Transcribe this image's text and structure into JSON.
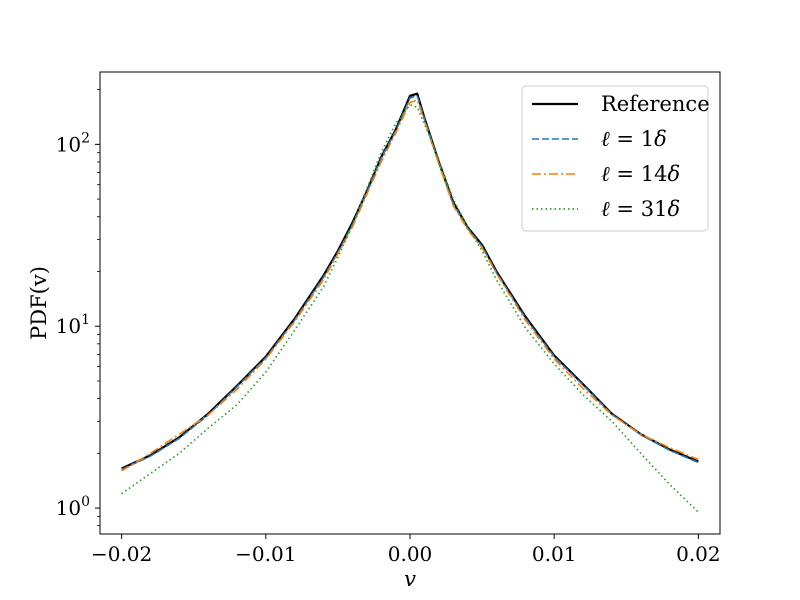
{
  "chart_data": {
    "type": "line",
    "title": "",
    "xlabel": "v",
    "ylabel": "PDF(v)",
    "yscale": "log",
    "xlim": [
      -0.0215,
      0.0215
    ],
    "ylim": [
      0.72,
      250
    ],
    "grid": false,
    "legend_position": "top-right",
    "x_ticks": [
      -0.02,
      -0.01,
      0.0,
      0.01,
      0.02
    ],
    "x_tick_labels": [
      "−0.02",
      "−0.01",
      "0.00",
      "0.01",
      "0.02"
    ],
    "y_ticks": [
      1,
      10,
      100
    ],
    "y_tick_labels": [
      {
        "base": "10",
        "exp": "0"
      },
      {
        "base": "10",
        "exp": "1"
      },
      {
        "base": "10",
        "exp": "2"
      }
    ],
    "series": [
      {
        "name": "Reference",
        "color": "#000000",
        "style": "solid",
        "x": [
          -0.02,
          -0.018,
          -0.016,
          -0.014,
          -0.012,
          -0.01,
          -0.008,
          -0.006,
          -0.005,
          -0.004,
          -0.003,
          -0.002,
          -0.001,
          0.0,
          0.0005,
          0.001,
          0.002,
          0.003,
          0.004,
          0.005,
          0.006,
          0.008,
          0.01,
          0.012,
          0.014,
          0.016,
          0.018,
          0.02
        ],
        "y": [
          1.65,
          1.95,
          2.45,
          3.3,
          4.7,
          6.8,
          11.0,
          19.0,
          26.0,
          37.0,
          55.0,
          85.0,
          120.0,
          185.0,
          190.0,
          140.0,
          80.0,
          48.0,
          35.0,
          28.0,
          20.0,
          11.3,
          6.9,
          4.8,
          3.3,
          2.55,
          2.1,
          1.8
        ]
      },
      {
        "name": "ℓ = 1δ",
        "color": "#1f77b4",
        "style": "dashed",
        "x": [
          -0.02,
          -0.018,
          -0.016,
          -0.014,
          -0.012,
          -0.01,
          -0.008,
          -0.006,
          -0.005,
          -0.004,
          -0.003,
          -0.002,
          -0.001,
          0.0,
          0.0005,
          0.001,
          0.002,
          0.003,
          0.004,
          0.005,
          0.006,
          0.008,
          0.01,
          0.012,
          0.014,
          0.016,
          0.018,
          0.02
        ],
        "y": [
          1.63,
          1.93,
          2.42,
          3.25,
          4.65,
          6.7,
          10.8,
          18.6,
          25.5,
          36.0,
          54.0,
          84.0,
          118.0,
          180.0,
          185.0,
          138.0,
          79.0,
          47.0,
          34.5,
          27.5,
          19.7,
          11.1,
          6.8,
          4.75,
          3.28,
          2.53,
          2.08,
          1.78
        ]
      },
      {
        "name": "ℓ = 14δ",
        "color": "#ff7f0e",
        "style": "dashdot",
        "x": [
          -0.02,
          -0.018,
          -0.016,
          -0.014,
          -0.012,
          -0.01,
          -0.008,
          -0.006,
          -0.005,
          -0.004,
          -0.003,
          -0.002,
          -0.001,
          0.0,
          0.0005,
          0.001,
          0.002,
          0.003,
          0.004,
          0.005,
          0.006,
          0.008,
          0.01,
          0.012,
          0.014,
          0.016,
          0.018,
          0.02
        ],
        "y": [
          1.6,
          2.0,
          2.55,
          3.25,
          4.5,
          6.6,
          10.6,
          18.0,
          25.0,
          35.0,
          53.0,
          80.0,
          115.0,
          170.0,
          175.0,
          135.0,
          78.0,
          46.0,
          34.0,
          27.0,
          19.5,
          10.8,
          6.6,
          4.55,
          3.25,
          2.55,
          2.15,
          1.85
        ]
      },
      {
        "name": "ℓ = 31δ",
        "color": "#2ca02c",
        "style": "dotted",
        "x": [
          -0.02,
          -0.018,
          -0.016,
          -0.014,
          -0.012,
          -0.01,
          -0.008,
          -0.006,
          -0.005,
          -0.004,
          -0.003,
          -0.002,
          -0.001,
          0.0,
          0.0005,
          0.001,
          0.002,
          0.003,
          0.004,
          0.005,
          0.006,
          0.008,
          0.01,
          0.012,
          0.014,
          0.016,
          0.018,
          0.02
        ],
        "y": [
          1.2,
          1.55,
          2.0,
          2.75,
          3.7,
          5.6,
          9.5,
          16.5,
          24.0,
          36.0,
          57.0,
          90.0,
          130.0,
          165.0,
          160.0,
          130.0,
          82.0,
          50.0,
          35.0,
          26.0,
          18.0,
          9.8,
          6.2,
          4.2,
          3.0,
          2.0,
          1.35,
          0.95
        ]
      }
    ]
  }
}
